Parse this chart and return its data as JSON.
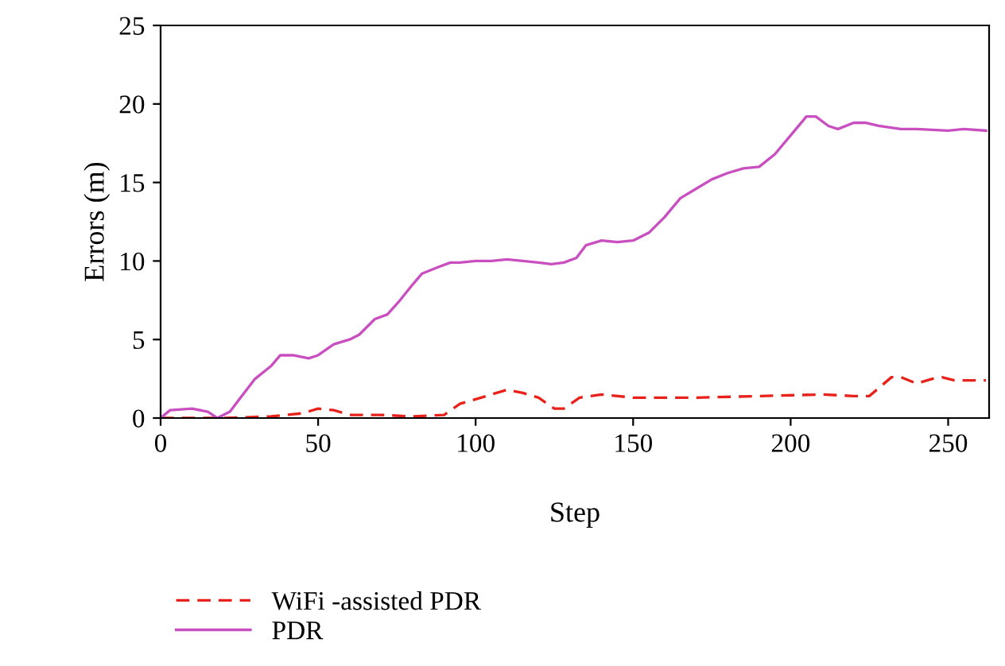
{
  "chart_data": {
    "type": "line",
    "xlabel": "Step",
    "ylabel": "Errors (m)",
    "xlim": [
      0,
      263
    ],
    "xticks": [
      0,
      50,
      100,
      150,
      200,
      250
    ],
    "ylim": [
      0,
      25
    ],
    "yticks": [
      0,
      5,
      10,
      15,
      20,
      25
    ],
    "grid": false,
    "legend": "bottom left",
    "series": [
      {
        "name": "WiFi -assisted PDR",
        "color": "#e8221b",
        "line_style": "dashed",
        "x": [
          0,
          20,
          35,
          45,
          50,
          55,
          60,
          70,
          80,
          90,
          95,
          100,
          105,
          110,
          115,
          120,
          125,
          128,
          133,
          140,
          150,
          170,
          190,
          210,
          220,
          225,
          232,
          235,
          240,
          245,
          248,
          252,
          262
        ],
        "values": [
          0,
          0,
          0.1,
          0.3,
          0.6,
          0.5,
          0.2,
          0.2,
          0.1,
          0.2,
          0.9,
          1.2,
          1.5,
          1.8,
          1.6,
          1.3,
          0.6,
          0.6,
          1.3,
          1.5,
          1.3,
          1.3,
          1.4,
          1.5,
          1.4,
          1.4,
          2.6,
          2.6,
          2.2,
          2.5,
          2.6,
          2.4,
          2.4
        ]
      },
      {
        "name": "PDR",
        "color": "#c94fc0",
        "line_style": "solid",
        "x": [
          0,
          3,
          10,
          15,
          18,
          22,
          25,
          30,
          35,
          38,
          42,
          47,
          50,
          55,
          60,
          63,
          68,
          72,
          76,
          80,
          83,
          88,
          92,
          95,
          100,
          105,
          110,
          115,
          120,
          124,
          128,
          132,
          135,
          140,
          145,
          150,
          155,
          160,
          165,
          170,
          175,
          180,
          185,
          190,
          195,
          200,
          205,
          208,
          212,
          215,
          220,
          224,
          228,
          235,
          240,
          250,
          255,
          262
        ],
        "values": [
          0,
          0.5,
          0.6,
          0.4,
          0,
          0.4,
          1.2,
          2.5,
          3.3,
          4.0,
          4.0,
          3.8,
          4.0,
          4.7,
          5.0,
          5.3,
          6.3,
          6.6,
          7.5,
          8.5,
          9.2,
          9.6,
          9.9,
          9.9,
          10.0,
          10.0,
          10.1,
          10.0,
          9.9,
          9.8,
          9.9,
          10.2,
          11.0,
          11.3,
          11.2,
          11.3,
          11.8,
          12.8,
          14.0,
          14.6,
          15.2,
          15.6,
          15.9,
          16.0,
          16.8,
          18.0,
          19.2,
          19.2,
          18.6,
          18.4,
          18.8,
          18.8,
          18.6,
          18.4,
          18.4,
          18.3,
          18.4,
          18.3
        ]
      }
    ]
  }
}
